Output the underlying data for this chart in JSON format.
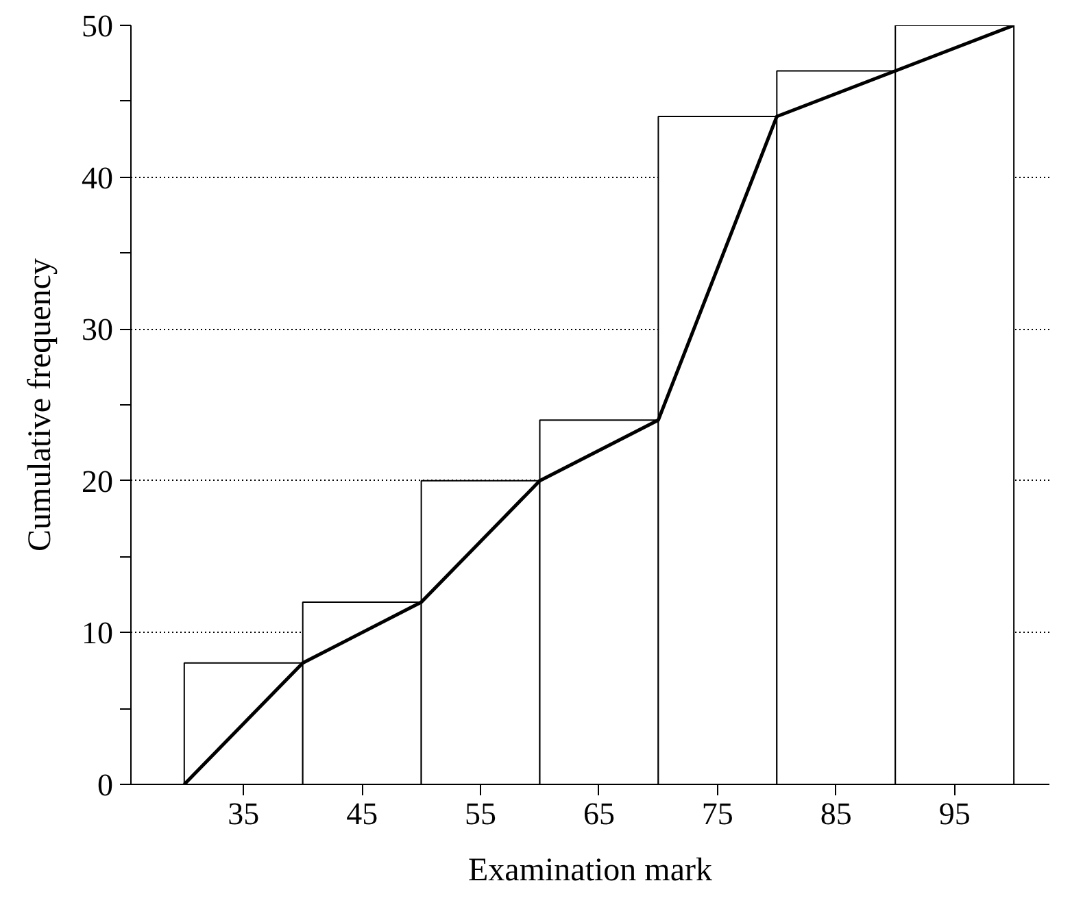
{
  "chart_data": {
    "type": "histogram",
    "xlabel": "Examination mark",
    "ylabel": "Cumulative frequency",
    "bins": [
      30,
      40,
      50,
      60,
      70,
      80,
      90,
      100
    ],
    "values": [
      8,
      12,
      20,
      24,
      44,
      47,
      50
    ],
    "color": "#ffffff",
    "series": [
      {
        "type": "line",
        "color": "#000000",
        "x": [
          30,
          40,
          50,
          60,
          70,
          80,
          90,
          100
        ],
        "values": [
          0,
          8,
          12,
          20,
          24,
          44,
          47,
          50
        ]
      }
    ],
    "xlim": [
      25.5,
      103
    ],
    "xticks": [
      35,
      45,
      55,
      65,
      75,
      85,
      95
    ],
    "ylim": [
      0,
      50
    ],
    "yticks": [
      0,
      {
        "value": 5,
        "label": null
      },
      10,
      {
        "value": 15,
        "label": null
      },
      20,
      {
        "value": 25,
        "label": null
      },
      30,
      {
        "value": 35,
        "label": null
      },
      40,
      {
        "value": 45,
        "label": null
      },
      50
    ],
    "grid": "y"
  }
}
